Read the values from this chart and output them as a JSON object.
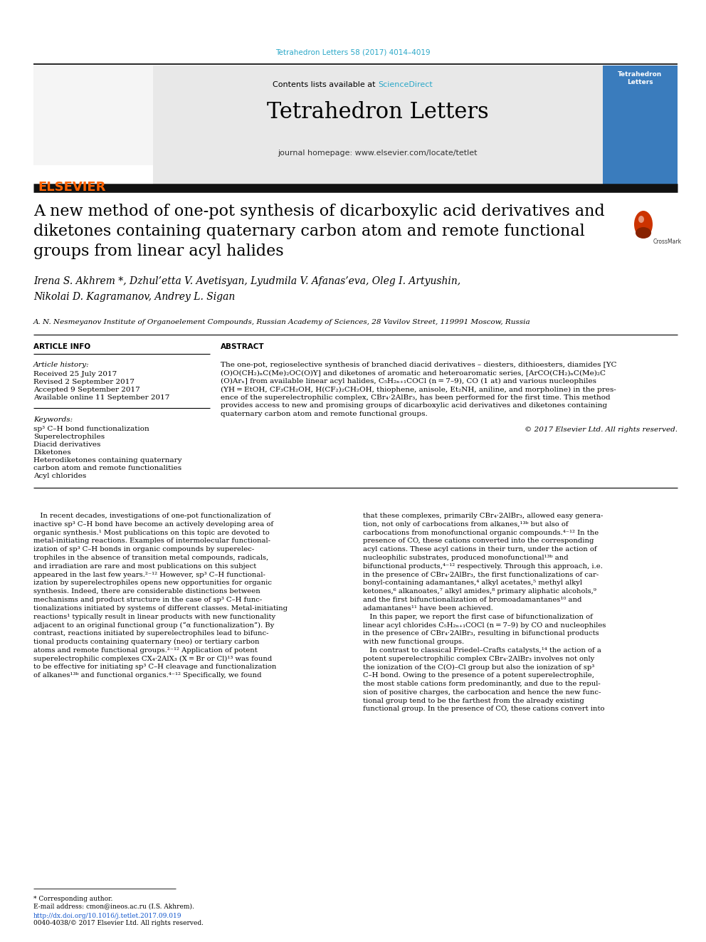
{
  "bg_color": "#ffffff",
  "top_journal_text": "Tetrahedron Letters 58 (2017) 4014–4019",
  "top_journal_color": "#2ba8c8",
  "header_bg": "#e8e8e8",
  "contents_text": "Contents lists available at ",
  "sciencedirect_text": "ScienceDirect",
  "sciencedirect_color": "#2ba8c8",
  "journal_title": "Tetrahedron Letters",
  "journal_homepage": "journal homepage: www.elsevier.com/locate/tetlet",
  "black_bar_color": "#111111",
  "paper_title_line1": "A new method of one-pot synthesis of dicarboxylic acid derivatives and",
  "paper_title_line2": "diketones containing quaternary carbon atom and remote functional",
  "paper_title_line3": "groups from linear acyl halides",
  "authors_line1": "Irena S. Akhrem *, Dzhul’etta V. Avetisyan, Lyudmila V. Afanas’eva, Oleg I. Artyushin,",
  "authors_line2": "Nikolai D. Kagramanov, Andrey L. Sigan",
  "affiliation": "A. N. Nesmeyanov Institute of Organoelement Compounds, Russian Academy of Sciences, 28 Vavilov Street, 119991 Moscow, Russia",
  "article_info_title": "ARTICLE INFO",
  "abstract_title": "ABSTRACT",
  "article_history_label": "Article history:",
  "received": "Received 25 July 2017",
  "revised": "Revised 2 September 2017",
  "accepted": "Accepted 9 September 2017",
  "available": "Available online 11 September 2017",
  "keywords_label": "Keywords:",
  "keywords": [
    "sp³ C–H bond functionalization",
    "Superelectrophiles",
    "Diacid derivatives",
    "Diketones",
    "Heterodiketones containing quaternary",
    "carbon atom and remote functionalities",
    "Acyl chlorides"
  ],
  "abstract_text": "The one-pot, regioselective synthesis of branched diacid derivatives – diesters, dithioesters, diamides [YC\n(O)O(CH₂)ₙC(Me)₂OC(O)Y] and diketones of aromatic and heteroaromatic series, [ArCO(CH₂)ₙC(Me)₂C\n(O)Arₓ] from available linear acyl halides, C₅H₂ₙ₊₁COCl (n = 7–9), CO (1 at) and various nucleophiles\n(YH = EtOH, CF₃CH₂OH, H(CF₂)₂CH₂OH, thiophene, anisole, Et₂NH, aniline, and morpholine) in the pres-\nence of the superelectrophilic complex, CBr₄·2AlBr₃, has been performed for the first time. This method\nprovides access to new and promising groups of dicarboxylic acid derivatives and diketones containing\nquaternary carbon atom and remote functional groups.",
  "copyright": "© 2017 Elsevier Ltd. All rights reserved.",
  "body_col1_lines": [
    "   In recent decades, investigations of one-pot functionalization of",
    "inactive sp³ C–H bond have become an actively developing area of",
    "organic synthesis.¹ Most publications on this topic are devoted to",
    "metal-initiating reactions. Examples of intermolecular functional-",
    "ization of sp³ C–H bonds in organic compounds by superelec-",
    "trophiles in the absence of transition metal compounds, radicals,",
    "and irradiation are rare and most publications on this subject",
    "appeared in the last few years.²⁻¹² However, sp³ C–H functional-",
    "ization by superelectrophiles opens new opportunities for organic",
    "synthesis. Indeed, there are considerable distinctions between",
    "mechanisms and product structure in the case of sp³ C–H func-",
    "tionalizations initiated by systems of different classes. Metal-initiating",
    "reactions¹ typically result in linear products with new functionality",
    "adjacent to an original functional group (“α functionalization”). By",
    "contrast, reactions initiated by superelectrophiles lead to bifunc-",
    "tional products containing quaternary (neo) or tertiary carbon",
    "atoms and remote functional groups.²⁻¹² Application of potent",
    "superelectrophilic complexes CX₄·2AlX₃ (X = Br or Cl)¹³ was found",
    "to be effective for initiating sp³ C–H cleavage and functionalization",
    "of alkanes¹³ᵇ and functional organics.⁴⁻¹² Specifically, we found"
  ],
  "body_col2_lines": [
    "that these complexes, primarily CBr₄·2AlBr₃, allowed easy genera-",
    "tion, not only of carbocations from alkanes,¹³ᵇ but also of",
    "carbocations from monofunctional organic compounds.⁴⁻¹² In the",
    "presence of CO, these cations converted into the corresponding",
    "acyl cations. These acyl cations in their turn, under the action of",
    "nucleophilic substrates, produced monofunctional¹³ᵇ and",
    "bifunctional products,⁴⁻¹² respectively. Through this approach, i.e.",
    "in the presence of CBr₄·2AlBr₃, the first functionalizations of car-",
    "bonyl-containing adamantanes,⁴ alkyl acetates,⁵ methyl alkyl",
    "ketones,⁶ alkanoates,⁷ alkyl amides,⁸ primary aliphatic alcohols,⁹",
    "and the first bifunctionalization of bromoadamantanes¹⁰ and",
    "adamantanes¹¹ have been achieved.",
    "   In this paper, we report the first case of bifunctionalization of",
    "linear acyl chlorides C₅H₂ₙ₊₁COCl (n = 7–9) by CO and nucleophiles",
    "in the presence of CBr₄·2AlBr₃, resulting in bifunctional products",
    "with new functional groups.",
    "   In contrast to classical Friedel–Crafts catalysts,¹⁴ the action of a",
    "potent superelectrophilic complex CBr₄·2AlBr₃ involves not only",
    "the ionization of the C(O)–Cl group but also the ionization of sp³",
    "C–H bond. Owing to the presence of a potent superelectrophile,",
    "the most stable cations form predominantly, and due to the repul-",
    "sion of positive charges, the carbocation and hence the new func-",
    "tional group tend to be the farthest from the already existing",
    "functional group. In the presence of CO, these cations convert into"
  ],
  "footnote1": "* Corresponding author.",
  "footnote2": "E-mail address: cmon@ineos.ac.ru (I.S. Akhrem).",
  "footnote3": "http://dx.doi.org/10.1016/j.tetlet.2017.09.019",
  "footnote4": "0040-4038/© 2017 Elsevier Ltd. All rights reserved.",
  "elsevier_color": "#ff6200",
  "link_color": "#1155cc"
}
